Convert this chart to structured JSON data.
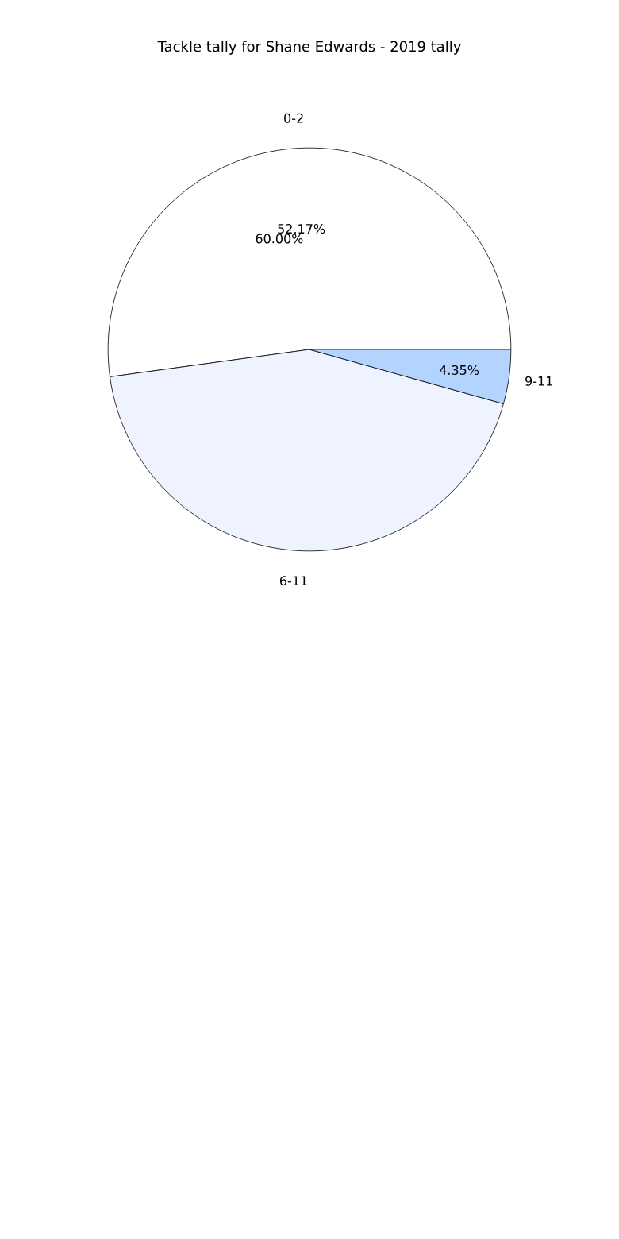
{
  "chart_data": {
    "type": "pie",
    "title": "Tackle tally for Shane Edwards - 2019 tally",
    "categories": [
      "0-2",
      "6-11",
      "9-11"
    ],
    "values": [
      52.17,
      43.48,
      4.35
    ],
    "colors": [
      "#ffffff",
      "#eef3ff",
      "#b3d4ff"
    ],
    "value_labels": [
      "52.17%",
      null,
      "4.35%"
    ],
    "annotations": [
      "60.00%"
    ]
  }
}
